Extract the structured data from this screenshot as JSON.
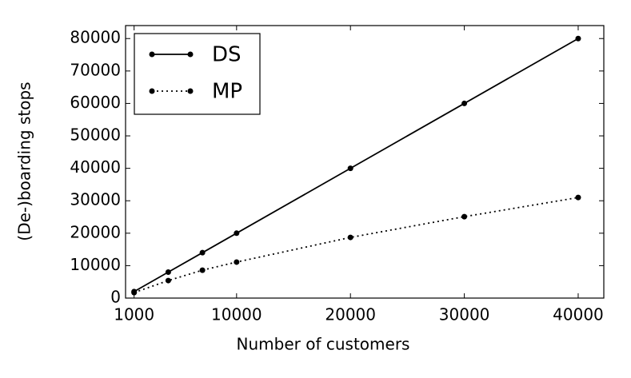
{
  "chart_data": {
    "type": "line",
    "x_label": "Number of customers",
    "y_label": "(De-)boarding stops",
    "x": [
      1000,
      4000,
      7000,
      10000,
      20000,
      30000,
      40000
    ],
    "series": [
      {
        "name": "DS",
        "color": "#000000",
        "linestyle": "solid",
        "values": [
          2000,
          8000,
          14000,
          20000,
          40000,
          60000,
          80000
        ]
      },
      {
        "name": "MP",
        "color": "#000000",
        "linestyle": "dotted",
        "values": [
          1700,
          5400,
          8600,
          11100,
          18700,
          25100,
          31000
        ]
      }
    ],
    "xlim": [
      250,
      42250
    ],
    "ylim": [
      0,
      84000
    ],
    "xticks": [
      1000,
      10000,
      20000,
      30000,
      40000
    ],
    "yticks": [
      0,
      10000,
      20000,
      30000,
      40000,
      50000,
      60000,
      70000,
      80000
    ],
    "legend": "upper left"
  }
}
